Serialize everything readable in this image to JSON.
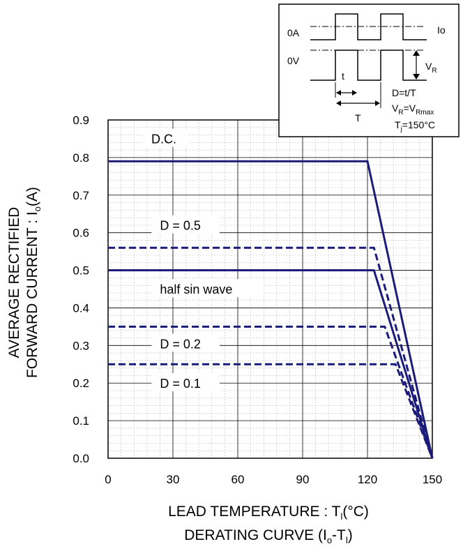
{
  "chart_data": {
    "type": "line",
    "xlabel": "LEAD TEMPERATURE : T",
    "xlabel_sub": "l",
    "xlabel_suffix": "(°C)",
    "caption": "DERATING CURVE (I",
    "caption_sub1": "o",
    "caption_mid": "-T",
    "caption_sub2": "l",
    "caption_suffix": ")",
    "ylabel_line1": "AVERAGE RECTIFIED",
    "ylabel_line2": "FORWARD CURRENT : I",
    "ylabel_line2_sub": "o",
    "ylabel_line2_suffix": "(A)",
    "xlim": [
      0,
      150
    ],
    "ylim": [
      0,
      0.9
    ],
    "xticks": [
      "0",
      "30",
      "60",
      "90",
      "120",
      "150"
    ],
    "xtick_values": [
      0,
      30,
      60,
      90,
      120,
      150
    ],
    "yticks": [
      "0.0",
      "0.1",
      "0.2",
      "0.3",
      "0.4",
      "0.5",
      "0.6",
      "0.7",
      "0.8",
      "0.9"
    ],
    "ytick_values": [
      0,
      0.1,
      0.2,
      0.3,
      0.4,
      0.5,
      0.6,
      0.7,
      0.8,
      0.9
    ],
    "grid": true,
    "series": [
      {
        "name": "D.C.",
        "style": "solid",
        "x": [
          0,
          120,
          150
        ],
        "y": [
          0.79,
          0.79,
          0
        ]
      },
      {
        "name": "D = 0.5",
        "style": "dashed",
        "x": [
          0,
          123,
          150
        ],
        "y": [
          0.56,
          0.56,
          0
        ]
      },
      {
        "name": "half sin wave",
        "style": "solid",
        "x": [
          0,
          123,
          150
        ],
        "y": [
          0.5,
          0.5,
          0
        ]
      },
      {
        "name": "D = 0.2",
        "style": "dashed",
        "x": [
          0,
          128,
          150
        ],
        "y": [
          0.35,
          0.35,
          0
        ]
      },
      {
        "name": "D = 0.1",
        "style": "dashed",
        "x": [
          0,
          133,
          150
        ],
        "y": [
          0.25,
          0.25,
          0
        ]
      }
    ],
    "series_labels": [
      {
        "text": "D.C.",
        "x": 20,
        "y": 0.845
      },
      {
        "text": "D = 0.5",
        "x": 24,
        "y": 0.615
      },
      {
        "text": "half sin wave",
        "x": 24,
        "y": 0.445
      },
      {
        "text": "D = 0.2",
        "x": 24,
        "y": 0.3
      },
      {
        "text": "D = 0.1",
        "x": 24,
        "y": 0.195
      }
    ],
    "colors": {
      "curve": "#1b1b7a",
      "grid_major": "#000000",
      "grid_minor": "#bdbdbd"
    }
  },
  "inset": {
    "label_0A": "0A",
    "label_0V": "0V",
    "label_Io": "Io",
    "label_VR": "V",
    "label_VR_sub": "R",
    "label_t": "t",
    "label_T": "T",
    "eq1": "D=t/T",
    "eq2_a": "V",
    "eq2_a_sub": "R",
    "eq2_b": "=V",
    "eq2_b_sub": "Rmax",
    "eq3_a": "T",
    "eq3_a_sub": "j",
    "eq3_b": "=150°C"
  }
}
